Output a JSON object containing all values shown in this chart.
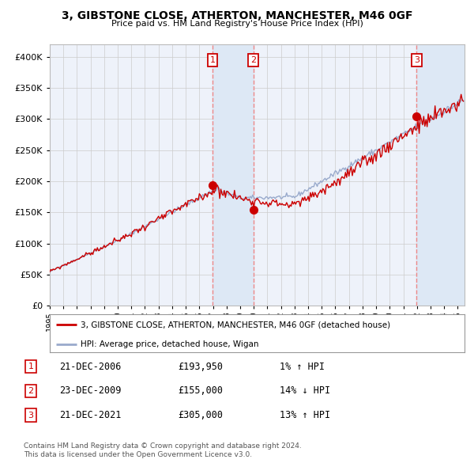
{
  "title": "3, GIBSTONE CLOSE, ATHERTON, MANCHESTER, M46 0GF",
  "subtitle": "Price paid vs. HM Land Registry's House Price Index (HPI)",
  "legend_line1": "3, GIBSTONE CLOSE, ATHERTON, MANCHESTER, M46 0GF (detached house)",
  "legend_line2": "HPI: Average price, detached house, Wigan",
  "footer1": "Contains HM Land Registry data © Crown copyright and database right 2024.",
  "footer2": "This data is licensed under the Open Government Licence v3.0.",
  "transactions": [
    {
      "num": 1,
      "date": "21-DEC-2006",
      "price": 193950,
      "pct": "1%",
      "dir": "↑"
    },
    {
      "num": 2,
      "date": "23-DEC-2009",
      "price": 155000,
      "pct": "14%",
      "dir": "↓"
    },
    {
      "num": 3,
      "date": "21-DEC-2021",
      "price": 305000,
      "pct": "13%",
      "dir": "↑"
    }
  ],
  "t1_x": 2006.97,
  "t2_x": 2009.97,
  "t3_x": 2021.97,
  "t1_y": 193950,
  "t2_y": 155000,
  "t3_y": 305000,
  "ylim": [
    0,
    420000
  ],
  "xlim_start": 1995.0,
  "xlim_end": 2025.5,
  "background_color": "#ffffff",
  "plot_bg_color": "#eef2fa",
  "grid_color": "#cccccc",
  "hpi_color": "#99aacc",
  "price_color": "#cc0000",
  "marker_color": "#cc0000",
  "vline_color": "#ee8888",
  "shade_color": "#dde8f5",
  "box_color": "#cc0000"
}
